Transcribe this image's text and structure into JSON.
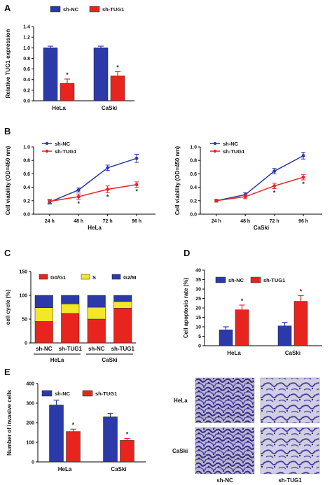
{
  "colors": {
    "nc": "#2b3aa8",
    "tug1": "#e8241f",
    "g0g1": "#e8241f",
    "s": "#f2e82a",
    "g2m": "#2b3aa8"
  },
  "panels": {
    "A": {
      "letter": "A"
    },
    "B": {
      "letter": "B"
    },
    "C": {
      "letter": "C"
    },
    "D": {
      "letter": "D"
    },
    "E": {
      "letter": "E"
    }
  },
  "images": {
    "row_labels": [
      "HeLa",
      "CaSki"
    ],
    "col_labels": [
      "sh-NC",
      "sh-TUG1"
    ]
  },
  "chart_data": [
    {
      "panel": "A",
      "type": "bar",
      "categories": [
        "HeLa",
        "CaSki"
      ],
      "ylabel": "Relative TUG1 expression",
      "xlabel": "",
      "ylim": [
        0,
        1.4
      ],
      "yticks": [
        "0.0",
        "0.2",
        "0.4",
        "0.6",
        "0.8",
        "1.0",
        "1.2",
        "1.4"
      ],
      "legend": [
        "sh-NC",
        "sh-TUG1"
      ],
      "series": [
        {
          "name": "sh-NC",
          "values": [
            1.0,
            1.0
          ],
          "errors": [
            0.03,
            0.03
          ]
        },
        {
          "name": "sh-TUG1",
          "values": [
            0.33,
            0.47
          ],
          "errors": [
            0.08,
            0.08
          ]
        }
      ],
      "significance": [
        "*",
        "*"
      ]
    },
    {
      "panel": "B-left",
      "type": "line",
      "x": [
        "24 h",
        "48 h",
        "72 h",
        "96 h"
      ],
      "xlabel": "HeLa",
      "ylabel": "Cell viability (OD=450 nm)",
      "ylim": [
        0,
        1.0
      ],
      "yticks": [
        "0.0",
        "0.2",
        "0.4",
        "0.6",
        "0.8",
        "1.0"
      ],
      "legend": [
        "sh-NC",
        "sh-TUG1"
      ],
      "series": [
        {
          "name": "sh-NC",
          "values": [
            0.18,
            0.36,
            0.69,
            0.83
          ],
          "errors": [
            0.03,
            0.03,
            0.04,
            0.06
          ]
        },
        {
          "name": "sh-TUG1",
          "values": [
            0.19,
            0.26,
            0.37,
            0.44
          ],
          "errors": [
            0.03,
            0.04,
            0.05,
            0.04
          ]
        }
      ],
      "significance": [
        "",
        "*",
        "*",
        "*"
      ]
    },
    {
      "panel": "B-right",
      "type": "line",
      "x": [
        "24 h",
        "48 h",
        "72 h",
        "96 h"
      ],
      "xlabel": "CaSki",
      "ylabel": "Cell viability (OD=450 nm)",
      "ylim": [
        0,
        1.0
      ],
      "yticks": [
        "0.0",
        "0.2",
        "0.4",
        "0.6",
        "0.8",
        "1.0"
      ],
      "legend": [
        "sh-NC",
        "sh-TUG1"
      ],
      "series": [
        {
          "name": "sh-NC",
          "values": [
            0.2,
            0.29,
            0.64,
            0.87
          ],
          "errors": [
            0.02,
            0.03,
            0.04,
            0.05
          ]
        },
        {
          "name": "sh-TUG1",
          "values": [
            0.2,
            0.26,
            0.42,
            0.55
          ],
          "errors": [
            0.02,
            0.03,
            0.04,
            0.04
          ]
        }
      ],
      "significance": [
        "",
        "",
        "*",
        "*"
      ]
    },
    {
      "panel": "C",
      "type": "bar",
      "stacked": true,
      "categories": [
        "sh-NC",
        "sh-TUG1",
        "sh-NC",
        "sh-TUG1"
      ],
      "groups": [
        {
          "label": "HeLa",
          "span": [
            0,
            1
          ]
        },
        {
          "label": "CaSki",
          "span": [
            2,
            3
          ]
        }
      ],
      "ylabel": "cell cycle (%)",
      "xlabel": "",
      "ylim": [
        0,
        150
      ],
      "yticks": [
        "0",
        "50",
        "100",
        "150"
      ],
      "legend": [
        "G0/G1",
        "S",
        "G2/M"
      ],
      "series": [
        {
          "name": "G0/G1",
          "values": [
            45,
            62,
            50,
            73
          ]
        },
        {
          "name": "S",
          "values": [
            29,
            20,
            25,
            14
          ]
        },
        {
          "name": "G2/M",
          "values": [
            26,
            18,
            25,
            13
          ]
        }
      ]
    },
    {
      "panel": "D",
      "type": "bar",
      "categories": [
        "HeLa",
        "CaSki"
      ],
      "ylabel": "Cell apoptosis rate (%)",
      "xlabel": "",
      "ylim": [
        0,
        40
      ],
      "yticks": [
        "0",
        "5",
        "10",
        "15",
        "20",
        "25",
        "30",
        "35",
        "40"
      ],
      "legend": [
        "sh-NC",
        "sh-TUG1"
      ],
      "series": [
        {
          "name": "sh-NC",
          "values": [
            8.4,
            10.5
          ],
          "errors": [
            1.6,
            1.8
          ]
        },
        {
          "name": "sh-TUG1",
          "values": [
            19.0,
            23.5
          ],
          "errors": [
            2.5,
            3.0
          ]
        }
      ],
      "significance": [
        "*",
        "*"
      ]
    },
    {
      "panel": "E",
      "type": "bar",
      "categories": [
        "HeLa",
        "CaSki"
      ],
      "ylabel": "Number of invasive cells",
      "xlabel": "",
      "ylim": [
        0,
        400
      ],
      "yticks": [
        "0",
        "100",
        "200",
        "300",
        "400"
      ],
      "legend": [
        "sh-NC",
        "sh-TUG1"
      ],
      "series": [
        {
          "name": "sh-NC",
          "values": [
            290,
            230
          ],
          "errors": [
            25,
            18
          ]
        },
        {
          "name": "sh-TUG1",
          "values": [
            155,
            110
          ],
          "errors": [
            12,
            10
          ]
        }
      ],
      "significance": [
        "*",
        "*"
      ]
    }
  ]
}
